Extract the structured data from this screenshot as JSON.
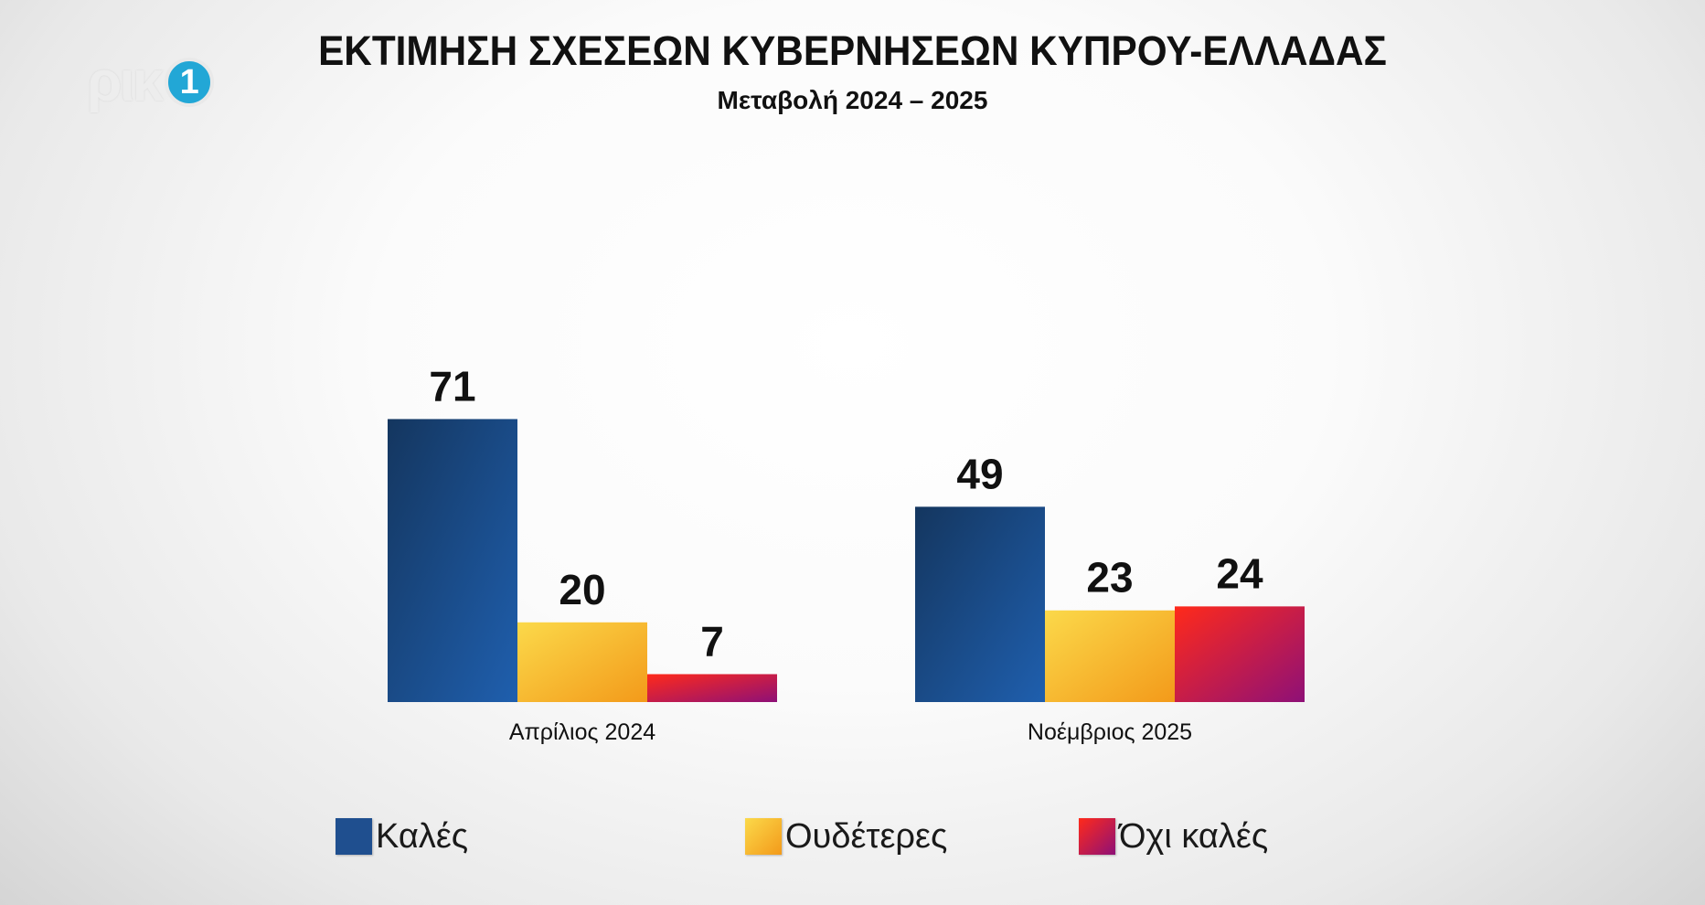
{
  "logo": {
    "text": "ρικ",
    "badge": "1"
  },
  "chart_data": {
    "type": "bar",
    "title": "ΕΚΤΙΜΗΣΗ ΣΧΕΣΕΩΝ ΚΥΒΕΡΝΗΣΕΩΝ ΚΥΠΡΟΥ-ΕΛΛΑΔΑΣ",
    "subtitle": "Μεταβολή 2024 – 2025",
    "xlabel": "",
    "ylabel": "",
    "ylim": [
      0,
      75
    ],
    "grid": false,
    "legend_position": "bottom",
    "categories": [
      "Απρίλιος 2024",
      "Νοέμβριος 2025"
    ],
    "series": [
      {
        "name": "Καλές",
        "values": [
          71,
          49
        ],
        "color": "#1e4f8f",
        "gradient": [
          "#14365f",
          "#1f5fae"
        ]
      },
      {
        "name": "Ουδέτερες",
        "values": [
          20,
          23
        ],
        "color": "#f5a623",
        "gradient": [
          "#fbd94a",
          "#f39a1a"
        ]
      },
      {
        "name": "Όχι καλές",
        "values": [
          7,
          24
        ],
        "color": "#c2185b",
        "gradient": [
          "#ff2a1a",
          "#8e1077"
        ]
      }
    ]
  }
}
